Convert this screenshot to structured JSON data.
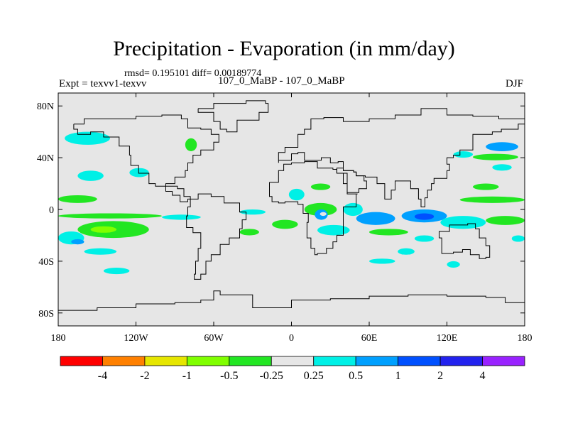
{
  "chart_data": {
    "type": "heatmap",
    "title": "Precipitation - Evaporation (in mm/day)",
    "stats_text": "rmsd= 0.195101 diff= 0.00189774",
    "experiment_label": "Expt = texvv1-texvv",
    "case_label": "107_0_MaBP - 107_0_MaBP",
    "season": "DJF",
    "xlim": [
      -180,
      180
    ],
    "ylim": [
      -90,
      90
    ],
    "x_ticks": [
      {
        "value": -180,
        "label": "180"
      },
      {
        "value": -120,
        "label": "120W"
      },
      {
        "value": -60,
        "label": "60W"
      },
      {
        "value": 0,
        "label": "0"
      },
      {
        "value": 60,
        "label": "60E"
      },
      {
        "value": 120,
        "label": "120E"
      },
      {
        "value": 180,
        "label": "180"
      }
    ],
    "y_ticks": [
      {
        "value": 80,
        "label": "80N"
      },
      {
        "value": 40,
        "label": "40N"
      },
      {
        "value": 0,
        "label": "0"
      },
      {
        "value": -40,
        "label": "40S"
      },
      {
        "value": -80,
        "label": "80S"
      }
    ],
    "levels": [
      "-4",
      "-2",
      "-1",
      "-0.5",
      "-0.25",
      "0.25",
      "0.5",
      "1",
      "2",
      "4"
    ],
    "level_colors": [
      "#ff0000",
      "#ff8000",
      "#e6e600",
      "#80ff00",
      "#22e622",
      "#e6e6e6",
      "#00f0e6",
      "#00a0ff",
      "#0050ff",
      "#2222ee",
      "#9922ff"
    ],
    "background_value_color": "#e6e6e6",
    "regions": [
      {
        "lon": [
          -175,
          -140
        ],
        "lat": [
          50,
          60
        ],
        "bin": 6
      },
      {
        "lon": [
          -125,
          -110
        ],
        "lat": [
          25,
          32
        ],
        "bin": 6
      },
      {
        "lon": [
          -165,
          -145
        ],
        "lat": [
          22,
          30
        ],
        "bin": 6
      },
      {
        "lon": [
          -180,
          -150
        ],
        "lat": [
          5,
          11
        ],
        "bin": 4
      },
      {
        "lon": [
          -180,
          -100
        ],
        "lat": [
          -7,
          -3
        ],
        "bin": 4
      },
      {
        "lon": [
          -100,
          -70
        ],
        "lat": [
          -8,
          -4
        ],
        "bin": 6
      },
      {
        "lon": [
          -165,
          -110
        ],
        "lat": [
          -22,
          -9
        ],
        "bin": 4
      },
      {
        "lon": [
          -155,
          -135
        ],
        "lat": [
          -18,
          -13
        ],
        "bin": 3
      },
      {
        "lon": [
          -180,
          -160
        ],
        "lat": [
          -27,
          -17
        ],
        "bin": 6
      },
      {
        "lon": [
          -170,
          -160
        ],
        "lat": [
          -27,
          -23
        ],
        "bin": 7
      },
      {
        "lon": [
          -160,
          -135
        ],
        "lat": [
          -35,
          -30
        ],
        "bin": 6
      },
      {
        "lon": [
          -145,
          -125
        ],
        "lat": [
          -50,
          -45
        ],
        "bin": 6
      },
      {
        "lon": [
          -82,
          -73
        ],
        "lat": [
          45,
          55
        ],
        "bin": 4
      },
      {
        "lon": [
          -40,
          -20
        ],
        "lat": [
          -4,
          0
        ],
        "bin": 6
      },
      {
        "lon": [
          -15,
          5
        ],
        "lat": [
          -15,
          -8
        ],
        "bin": 4
      },
      {
        "lon": [
          -2,
          10
        ],
        "lat": [
          7,
          16
        ],
        "bin": 6
      },
      {
        "lon": [
          15,
          30
        ],
        "lat": [
          15,
          20
        ],
        "bin": 4
      },
      {
        "lon": [
          10,
          35
        ],
        "lat": [
          -5,
          5
        ],
        "bin": 4
      },
      {
        "lon": [
          18,
          28
        ],
        "lat": [
          -8,
          0
        ],
        "bin": 7
      },
      {
        "lon": [
          22,
          27
        ],
        "lat": [
          -5,
          -2
        ],
        "bin": 5
      },
      {
        "lon": [
          20,
          45
        ],
        "lat": [
          -20,
          -12
        ],
        "bin": 6
      },
      {
        "lon": [
          40,
          55
        ],
        "lat": [
          -5,
          5
        ],
        "bin": 6
      },
      {
        "lon": [
          50,
          80
        ],
        "lat": [
          -12,
          -2
        ],
        "bin": 7
      },
      {
        "lon": [
          60,
          90
        ],
        "lat": [
          -20,
          -15
        ],
        "bin": 4
      },
      {
        "lon": [
          85,
          120
        ],
        "lat": [
          -10,
          0
        ],
        "bin": 7
      },
      {
        "lon": [
          95,
          110
        ],
        "lat": [
          -8,
          -3
        ],
        "bin": 8
      },
      {
        "lon": [
          115,
          150
        ],
        "lat": [
          -15,
          -5
        ],
        "bin": 6
      },
      {
        "lon": [
          130,
          180
        ],
        "lat": [
          5,
          10
        ],
        "bin": 4
      },
      {
        "lon": [
          150,
          180
        ],
        "lat": [
          -12,
          -5
        ],
        "bin": 4
      },
      {
        "lon": [
          140,
          175
        ],
        "lat": [
          38,
          43
        ],
        "bin": 4
      },
      {
        "lon": [
          150,
          175
        ],
        "lat": [
          45,
          52
        ],
        "bin": 7
      },
      {
        "lon": [
          125,
          140
        ],
        "lat": [
          40,
          45
        ],
        "bin": 6
      },
      {
        "lon": [
          155,
          170
        ],
        "lat": [
          30,
          35
        ],
        "bin": 6
      },
      {
        "lon": [
          140,
          160
        ],
        "lat": [
          15,
          20
        ],
        "bin": 4
      },
      {
        "lon": [
          82,
          95
        ],
        "lat": [
          -35,
          -30
        ],
        "bin": 6
      },
      {
        "lon": [
          60,
          80
        ],
        "lat": [
          -42,
          -38
        ],
        "bin": 6
      },
      {
        "lon": [
          120,
          130
        ],
        "lat": [
          -45,
          -40
        ],
        "bin": 6
      },
      {
        "lon": [
          95,
          110
        ],
        "lat": [
          -25,
          -20
        ],
        "bin": 6
      },
      {
        "lon": [
          170,
          180
        ],
        "lat": [
          -25,
          -20
        ],
        "bin": 6
      },
      {
        "lon": [
          -40,
          -25
        ],
        "lat": [
          -20,
          -15
        ],
        "bin": 4
      }
    ],
    "continents": [
      {
        "name": "north-america",
        "lonlat": [
          [
            -168,
            66
          ],
          [
            -160,
            70
          ],
          [
            -140,
            70
          ],
          [
            -120,
            72
          ],
          [
            -100,
            73
          ],
          [
            -85,
            70
          ],
          [
            -80,
            63
          ],
          [
            -70,
            62
          ],
          [
            -62,
            58
          ],
          [
            -56,
            52
          ],
          [
            -60,
            46
          ],
          [
            -70,
            42
          ],
          [
            -76,
            36
          ],
          [
            -80,
            30
          ],
          [
            -82,
            25
          ],
          [
            -90,
            20
          ],
          [
            -97,
            18
          ],
          [
            -105,
            20
          ],
          [
            -110,
            28
          ],
          [
            -118,
            34
          ],
          [
            -124,
            42
          ],
          [
            -125,
            49
          ],
          [
            -133,
            56
          ],
          [
            -145,
            60
          ],
          [
            -155,
            58
          ],
          [
            -165,
            62
          ]
        ]
      },
      {
        "name": "central-america",
        "lonlat": [
          [
            -97,
            18
          ],
          [
            -88,
            16
          ],
          [
            -83,
            10
          ],
          [
            -78,
            8
          ],
          [
            -80,
            6
          ],
          [
            -86,
            11
          ],
          [
            -92,
            14
          ]
        ]
      },
      {
        "name": "south-america",
        "lonlat": [
          [
            -78,
            8
          ],
          [
            -72,
            12
          ],
          [
            -62,
            10
          ],
          [
            -52,
            5
          ],
          [
            -40,
            -2
          ],
          [
            -35,
            -8
          ],
          [
            -38,
            -15
          ],
          [
            -40,
            -22
          ],
          [
            -48,
            -27
          ],
          [
            -55,
            -35
          ],
          [
            -62,
            -40
          ],
          [
            -66,
            -50
          ],
          [
            -70,
            -54
          ],
          [
            -75,
            -50
          ],
          [
            -74,
            -40
          ],
          [
            -72,
            -30
          ],
          [
            -70,
            -18
          ],
          [
            -76,
            -14
          ],
          [
            -81,
            -5
          ],
          [
            -80,
            2
          ]
        ]
      },
      {
        "name": "greenland",
        "lonlat": [
          [
            -72,
            78
          ],
          [
            -60,
            82
          ],
          [
            -35,
            84
          ],
          [
            -20,
            82
          ],
          [
            -18,
            75
          ],
          [
            -25,
            69
          ],
          [
            -42,
            60
          ],
          [
            -50,
            62
          ],
          [
            -55,
            68
          ],
          [
            -60,
            75
          ]
        ]
      },
      {
        "name": "eurasia",
        "lonlat": [
          [
            -10,
            36
          ],
          [
            -10,
            44
          ],
          [
            -5,
            48
          ],
          [
            5,
            52
          ],
          [
            5,
            58
          ],
          [
            10,
            62
          ],
          [
            15,
            70
          ],
          [
            25,
            71
          ],
          [
            40,
            68
          ],
          [
            60,
            70
          ],
          [
            80,
            73
          ],
          [
            100,
            78
          ],
          [
            120,
            73
          ],
          [
            140,
            72
          ],
          [
            160,
            70
          ],
          [
            180,
            66
          ],
          [
            175,
            62
          ],
          [
            162,
            60
          ],
          [
            155,
            58
          ],
          [
            140,
            55
          ],
          [
            140,
            46
          ],
          [
            130,
            42
          ],
          [
            125,
            40
          ],
          [
            120,
            35
          ],
          [
            122,
            30
          ],
          [
            120,
            24
          ],
          [
            110,
            20
          ],
          [
            108,
            15
          ],
          [
            105,
            9
          ],
          [
            103,
            2
          ],
          [
            100,
            8
          ],
          [
            98,
            16
          ],
          [
            92,
            22
          ],
          [
            88,
            22
          ],
          [
            80,
            15
          ],
          [
            77,
            8
          ],
          [
            72,
            20
          ],
          [
            66,
            25
          ],
          [
            57,
            26
          ],
          [
            50,
            29
          ],
          [
            48,
            30
          ],
          [
            40,
            37
          ],
          [
            36,
            36
          ],
          [
            30,
            40
          ],
          [
            26,
            40
          ],
          [
            23,
            38
          ],
          [
            15,
            38
          ],
          [
            10,
            44
          ],
          [
            5,
            43
          ],
          [
            0,
            38
          ]
        ]
      },
      {
        "name": "africa",
        "lonlat": [
          [
            -17,
            21
          ],
          [
            -10,
            30
          ],
          [
            -6,
            35
          ],
          [
            0,
            36
          ],
          [
            10,
            37
          ],
          [
            20,
            32
          ],
          [
            32,
            31
          ],
          [
            35,
            28
          ],
          [
            43,
            12
          ],
          [
            51,
            12
          ],
          [
            50,
            2
          ],
          [
            40,
            -10
          ],
          [
            40,
            -20
          ],
          [
            35,
            -25
          ],
          [
            32,
            -30
          ],
          [
            27,
            -34
          ],
          [
            20,
            -35
          ],
          [
            18,
            -30
          ],
          [
            15,
            -22
          ],
          [
            12,
            -10
          ],
          [
            13,
            -3
          ],
          [
            9,
            4
          ],
          [
            5,
            6
          ],
          [
            -5,
            5
          ],
          [
            -10,
            6
          ],
          [
            -15,
            10
          ],
          [
            -17,
            15
          ]
        ]
      },
      {
        "name": "arabia",
        "lonlat": [
          [
            35,
            28
          ],
          [
            40,
            20
          ],
          [
            43,
            13
          ],
          [
            52,
            16
          ],
          [
            58,
            22
          ],
          [
            56,
            26
          ],
          [
            50,
            29
          ],
          [
            48,
            30
          ],
          [
            40,
            32
          ]
        ]
      },
      {
        "name": "australia",
        "lonlat": [
          [
            114,
            -22
          ],
          [
            116,
            -34
          ],
          [
            125,
            -33
          ],
          [
            132,
            -31
          ],
          [
            138,
            -35
          ],
          [
            145,
            -38
          ],
          [
            150,
            -37
          ],
          [
            153,
            -28
          ],
          [
            150,
            -22
          ],
          [
            145,
            -15
          ],
          [
            142,
            -11
          ],
          [
            136,
            -12
          ],
          [
            130,
            -12
          ],
          [
            122,
            -17
          ]
        ]
      },
      {
        "name": "antarctica",
        "lonlat": [
          [
            -180,
            -78
          ],
          [
            -150,
            -76
          ],
          [
            -120,
            -73
          ],
          [
            -90,
            -72
          ],
          [
            -70,
            -70
          ],
          [
            -60,
            -63
          ],
          [
            -55,
            -66
          ],
          [
            -30,
            -76
          ],
          [
            0,
            -70
          ],
          [
            30,
            -69
          ],
          [
            60,
            -67
          ],
          [
            90,
            -66
          ],
          [
            120,
            -67
          ],
          [
            150,
            -68
          ],
          [
            165,
            -72
          ],
          [
            180,
            -78
          ],
          [
            180,
            -90
          ],
          [
            -180,
            -90
          ]
        ]
      }
    ]
  }
}
